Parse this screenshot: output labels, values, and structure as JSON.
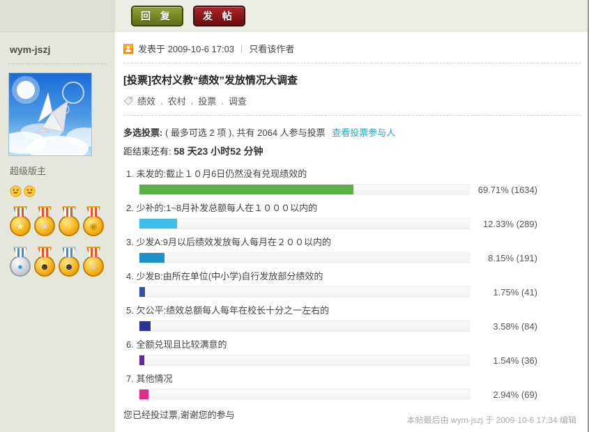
{
  "toolbar": {
    "reply_label": "回 复",
    "post_label": "发 帖"
  },
  "sidebar": {
    "username": "wym-jszj",
    "role": "超级版主",
    "medals": [
      {
        "name": "gold-star-medal",
        "glyph": "★",
        "glyph_color": "#fdf3c2",
        "body": "gold",
        "ribbon": "red"
      },
      {
        "name": "gear-silver-star-medal",
        "glyph": "★",
        "glyph_color": "#dadbdd",
        "body": "gold",
        "ribbon": "red"
      },
      {
        "name": "gold-bird-medal",
        "glyph": "●",
        "glyph_color": "#ffd23e",
        "body": "gold",
        "ribbon": "red"
      },
      {
        "name": "gold-coin-medal",
        "glyph": "◉",
        "glyph_color": "#c88f00",
        "body": "gold",
        "ribbon": "red"
      },
      {
        "name": "water-drop-medal",
        "glyph": "●",
        "glyph_color": "#3d9bdc",
        "body": "silver",
        "ribbon": "blue"
      },
      {
        "name": "girl-portrait-medal",
        "glyph": "☻",
        "glyph_color": "#35241c",
        "body": "gold",
        "ribbon": "red"
      },
      {
        "name": "boy-portrait-medal",
        "glyph": "☻",
        "glyph_color": "#24303f",
        "body": "gold",
        "ribbon": "blue"
      },
      {
        "name": "gear-silver-ball-medal",
        "glyph": "●",
        "glyph_color": "#d0d2d5",
        "body": "gold",
        "ribbon": "red"
      }
    ]
  },
  "post": {
    "meta": {
      "posted_at": "发表于 2009-10-6 17:03",
      "separator": "|",
      "only_author": "只看该作者"
    },
    "title": "[投票]农村义教“绩效”发放情况大调查",
    "tags": [
      "绩效",
      "农村",
      "投票",
      "调查"
    ],
    "tag_separator": ",",
    "poll": {
      "type_label": "多选投票:",
      "rule_text": "( 最多可选 2 项 ), 共有 2064 人参与投票",
      "view_participants_label": "查看投票参与人",
      "link_color": "#2ba7b4",
      "countdown_label": "距结束还有:",
      "countdown_value": "58 天23 小时52 分钟",
      "options": [
        {
          "index": "1.",
          "label": "未发的:截止１０月6日仍然没有兑现绩效的",
          "percent": 69.71,
          "votes": 1634,
          "display": "69.71% (1634)",
          "color": "#5cb047"
        },
        {
          "index": "2.",
          "label": "少补的:1~8月补发总额每人在１０００以内的",
          "percent": 12.33,
          "votes": 289,
          "display": "12.33% (289)",
          "color": "#3ebde8"
        },
        {
          "index": "3.",
          "label": "少发A:9月以后绩效发放每人每月在２００以内的",
          "percent": 8.15,
          "votes": 191,
          "display": "8.15% (191)",
          "color": "#1b93c7"
        },
        {
          "index": "4.",
          "label": "少发B:由所在单位(中小学)自行发放部分绩效的",
          "percent": 1.75,
          "votes": 41,
          "display": "1.75% (41)",
          "color": "#33519c"
        },
        {
          "index": "5.",
          "label": "欠公平:绩效总额每人每年在校长十分之一左右的",
          "percent": 3.58,
          "votes": 84,
          "display": "3.58% (84)",
          "color": "#2c3593"
        },
        {
          "index": "6.",
          "label": "全额兑现且比较满意的",
          "percent": 1.54,
          "votes": 36,
          "display": "1.54% (36)",
          "color": "#5e2d91"
        },
        {
          "index": "7.",
          "label": "其他情况",
          "percent": 2.94,
          "votes": 69,
          "display": "2.94% (69)",
          "color": "#de2b8d"
        }
      ],
      "voted_note": "您已经投过票,谢谢您的参与"
    },
    "edit_note": "本帖最后由 wym-jszj 于 2009-10-6 17:34 编辑"
  }
}
